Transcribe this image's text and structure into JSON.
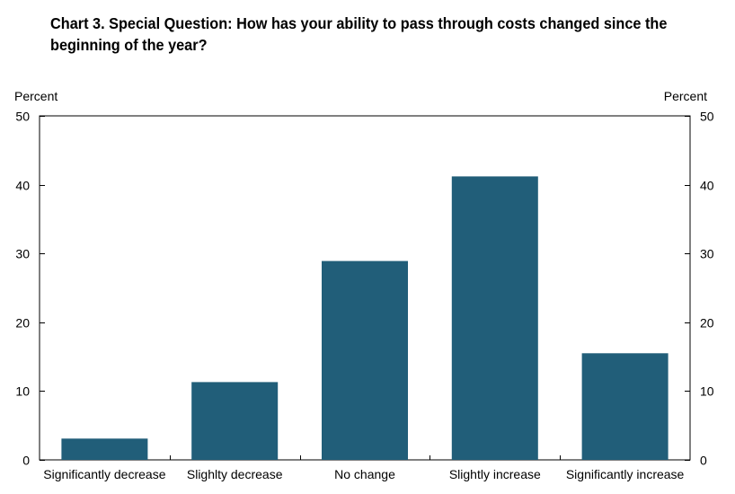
{
  "chart_data": {
    "type": "bar",
    "title": "Chart 3. Special Question: How has your ability to pass through costs changed since the beginning of the year?",
    "ylabel_left": "Percent",
    "ylabel_right": "Percent",
    "categories": [
      "Significantly decrease",
      "Slighlty decrease",
      "No change",
      "Slightly increase",
      "Significantly increase"
    ],
    "values": [
      3.1,
      11.3,
      28.9,
      41.2,
      15.5
    ],
    "ylim": [
      0,
      50
    ],
    "yticks": [
      0,
      10,
      20,
      30,
      40,
      50
    ],
    "ytick_labels": [
      "0",
      "10",
      "20",
      "30",
      "40",
      "50"
    ],
    "bar_color": "#215e79",
    "grid": false,
    "legend": "none"
  }
}
